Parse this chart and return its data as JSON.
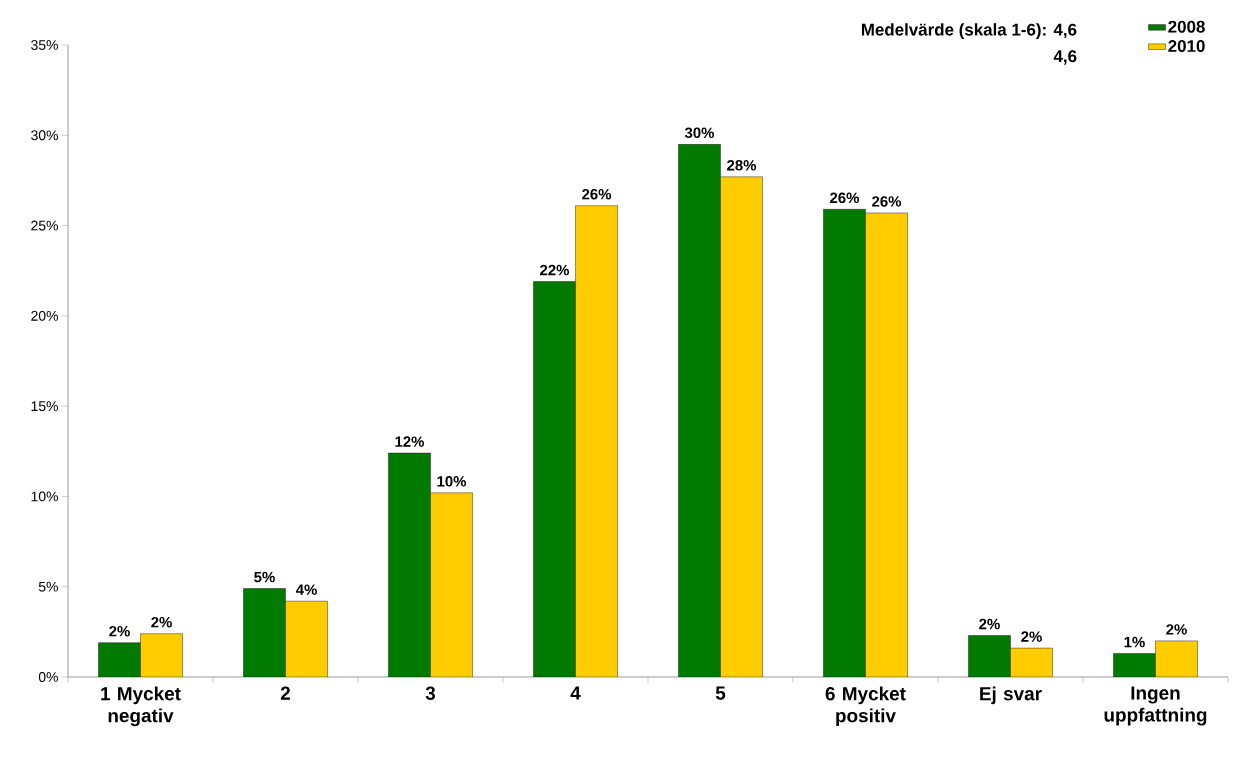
{
  "chart_data": {
    "type": "bar",
    "categories": [
      "1 Mycket negativ",
      "2",
      "3",
      "4",
      "5",
      "6 Mycket positiv",
      "Ej svar",
      "Ingen uppfattning"
    ],
    "series": [
      {
        "name": "2008",
        "color": "#007a00",
        "values": [
          1.9,
          4.9,
          12.4,
          21.9,
          29.5,
          25.9,
          2.3,
          1.3
        ],
        "value_labels": [
          "2%",
          "5%",
          "12%",
          "22%",
          "30%",
          "26%",
          "2%",
          "1%"
        ]
      },
      {
        "name": "2010",
        "color": "#ffcc00",
        "values": [
          2.4,
          4.2,
          10.2,
          26.1,
          27.7,
          25.7,
          1.6,
          2.0
        ],
        "value_labels": [
          "2%",
          "4%",
          "10%",
          "26%",
          "28%",
          "26%",
          "2%",
          "2%"
        ]
      }
    ],
    "ylim": [
      0,
      35
    ],
    "yticks": [
      {
        "value": 0,
        "label": "0%"
      },
      {
        "value": 5,
        "label": "5%"
      },
      {
        "value": 10,
        "label": "10%"
      },
      {
        "value": 15,
        "label": "15%"
      },
      {
        "value": 20,
        "label": "20%"
      },
      {
        "value": 25,
        "label": "25%"
      },
      {
        "value": 30,
        "label": "30%"
      },
      {
        "value": 35,
        "label": "35%"
      }
    ],
    "annotations": [
      "Medelvärde (skala 1-6): 4,6",
      "4,6"
    ],
    "legend": "top right",
    "grid": false
  }
}
